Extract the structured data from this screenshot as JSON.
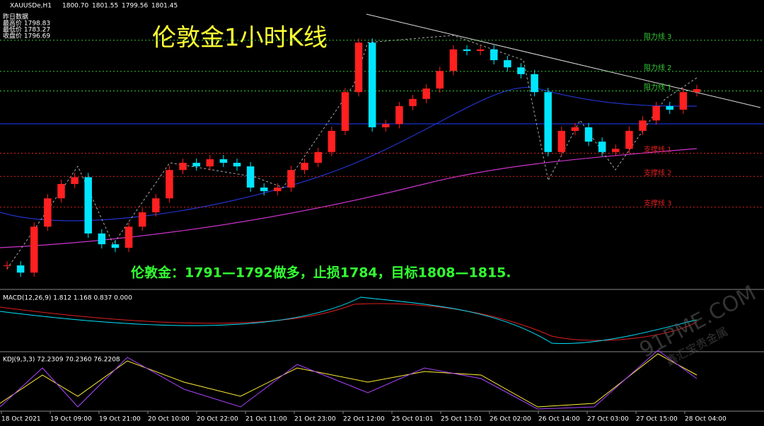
{
  "chart_data": {
    "type": "candlestick",
    "symbol": "XAUUSDe,H1",
    "ohlc_header": [
      "1800.70",
      "1801.55",
      "1799.56",
      "1801.45"
    ],
    "title": "伦敦金1小时K线",
    "annotation": "伦敦金：1791—1792做多，止损1784，目标1808—1815.",
    "yesterday": {
      "heading": "昨日数据",
      "rows": [
        "最高价 1798.83",
        "最低价 1783.27",
        "收盘价 1796.69"
      ]
    },
    "up_color": "#ff2020",
    "down_color": "#00e5ff",
    "ylim": [
      1752,
      1822
    ],
    "close": [
      1757.3,
      1755.5,
      1767.0,
      1774.1,
      1777.7,
      1779.4,
      1765.3,
      1762.6,
      1761.7,
      1767.0,
      1770.6,
      1774.1,
      1781.2,
      1783.0,
      1782.1,
      1783.9,
      1783.0,
      1782.1,
      1776.8,
      1775.9,
      1776.8,
      1781.2,
      1783.0,
      1785.7,
      1791.0,
      1800.7,
      1813.1,
      1791.9,
      1792.7,
      1797.2,
      1799.0,
      1801.6,
      1806.0,
      1811.4,
      1811.0,
      1811.4,
      1808.7,
      1806.9,
      1805.2,
      1800.7,
      1785.7,
      1791.0,
      1791.9,
      1788.3,
      1785.7,
      1786.5,
      1791.0,
      1793.6,
      1797.2,
      1796.3,
      1800.7,
      1801.45
    ],
    "levels": [
      {
        "label": "阻力线 3",
        "value": 1813.7,
        "color": "#33cc33"
      },
      {
        "label": "阻力线 2",
        "value": 1805.9,
        "color": "#33cc33"
      },
      {
        "label": "阻力线 1",
        "value": 1801.0,
        "color": "#33cc33"
      },
      {
        "label": "支撑线 1",
        "value": 1785.4,
        "color": "#e02020"
      },
      {
        "label": "支撑线 2",
        "value": 1779.6,
        "color": "#e02020"
      },
      {
        "label": "支撑线 3",
        "value": 1771.9,
        "color": "#e02020"
      }
    ],
    "macd_header": "MACD(12,26,9) 1.812 1.168 0.837 0.000",
    "kdj_header": "KDJ(9,3,3) 72.2309 70.2360 76.2208",
    "x_labels": [
      "18 Oct 2021",
      "19 Oct 09:00",
      "19 Oct 21:00",
      "20 Oct 10:00",
      "20 Oct 22:00",
      "21 Oct 11:00",
      "21 Oct 23:00",
      "22 Oct 12:00",
      "25 Oct 01:01",
      "25 Oct 13:01",
      "26 Oct 02:00",
      "26 Oct 14:00",
      "27 Oct 03:00",
      "27 Oct 15:00",
      "28 Oct 04:00"
    ],
    "watermark": [
      "91PME.COM",
      "鑫汇宝贵金属"
    ]
  }
}
